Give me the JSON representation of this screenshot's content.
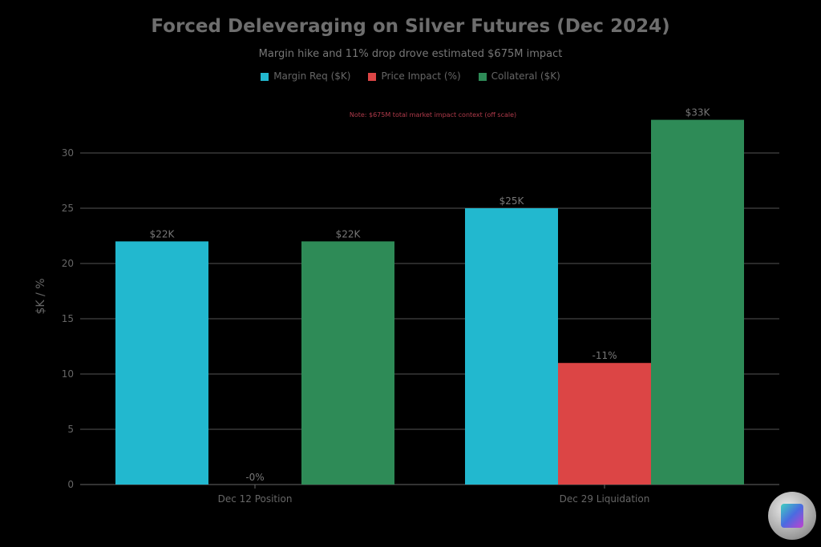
{
  "chart_data": {
    "type": "bar",
    "title": "Forced Deleveraging on Silver Futures (Dec 2024)",
    "subtitle": "Margin hike and 11% drop drove estimated $675M impact",
    "annotation": "Note: $675M total market impact context (off scale)",
    "xlabel": "",
    "ylabel": "$K / %",
    "ylim": [
      0,
      33
    ],
    "yticks": [
      0,
      5,
      10,
      15,
      20,
      25,
      30
    ],
    "grid": true,
    "legend_position": "top",
    "categories": [
      "Dec 12 Position",
      "Dec 29 Liquidation"
    ],
    "series": [
      {
        "name": "Margin Req ($K)",
        "color": "#22b8cf",
        "values": [
          22,
          25
        ],
        "labels": [
          "$22K",
          "$25K"
        ]
      },
      {
        "name": "Price Impact (%)",
        "color": "#dc4545",
        "values": [
          0,
          11
        ],
        "labels": [
          "-0%",
          "-11%"
        ]
      },
      {
        "name": "Collateral ($K)",
        "color": "#2e8b57",
        "values": [
          22,
          33
        ],
        "labels": [
          "$22K",
          "$33K"
        ]
      }
    ]
  }
}
